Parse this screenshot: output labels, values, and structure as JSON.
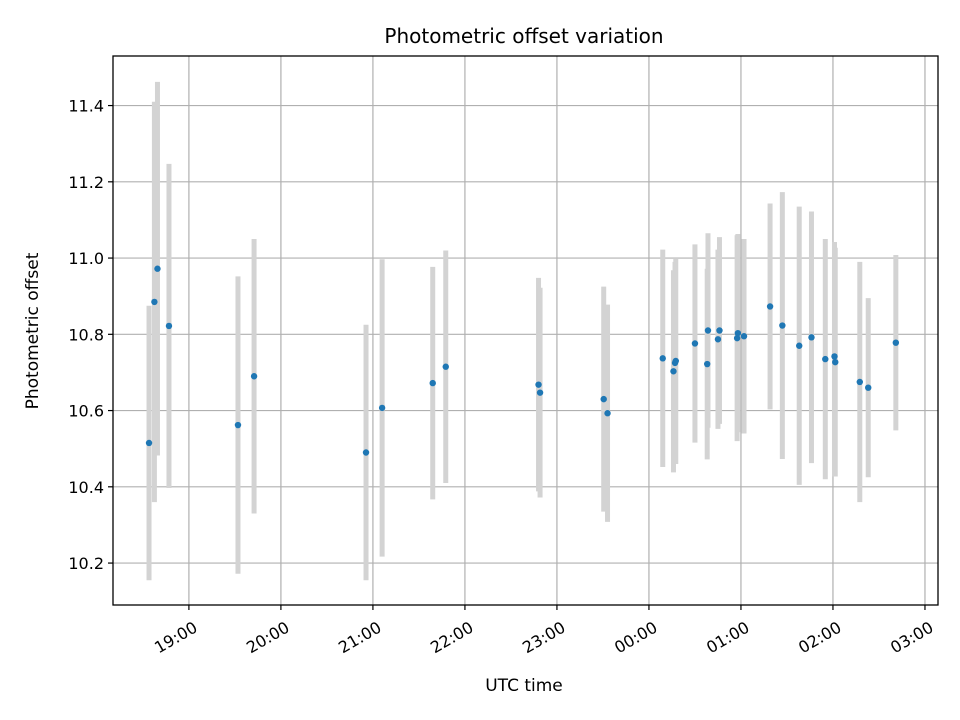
{
  "chart_data": {
    "type": "scatter",
    "title": "Photometric offset variation",
    "xlabel": "UTC time",
    "ylabel": "Photometric offset",
    "x_tick_labels": [
      "19:00",
      "20:00",
      "21:00",
      "22:00",
      "23:00",
      "00:00",
      "01:00",
      "02:00",
      "03:00"
    ],
    "y_tick_labels": [
      "10.2",
      "10.4",
      "10.6",
      "10.8",
      "11.0",
      "11.2",
      "11.4"
    ],
    "x_ticks_minutes_after_1900": [
      0,
      60,
      120,
      180,
      240,
      300,
      360,
      420,
      480
    ],
    "xlim_minutes_after_1900": [
      -49.5,
      488.5
    ],
    "ylim": [
      10.09,
      11.53
    ],
    "grid": true,
    "colors": {
      "points": "#1f77b4",
      "error_bars": "#d3d3d3",
      "grid": "#b0b0b0"
    },
    "points": [
      {
        "t": -26,
        "y": 10.515,
        "err": 0.36
      },
      {
        "t": -22.5,
        "y": 10.885,
        "err": 0.525
      },
      {
        "t": -20.5,
        "y": 10.972,
        "err": 0.49
      },
      {
        "t": -13,
        "y": 10.822,
        "err": 0.425
      },
      {
        "t": 32,
        "y": 10.562,
        "err": 0.39
      },
      {
        "t": 42.5,
        "y": 10.69,
        "err": 0.36
      },
      {
        "t": 115.5,
        "y": 10.49,
        "err": 0.335
      },
      {
        "t": 126,
        "y": 10.607,
        "err": 0.39
      },
      {
        "t": 159,
        "y": 10.672,
        "err": 0.305
      },
      {
        "t": 167.5,
        "y": 10.715,
        "err": 0.305
      },
      {
        "t": 228,
        "y": 10.668,
        "err": 0.28
      },
      {
        "t": 229,
        "y": 10.647,
        "err": 0.275
      },
      {
        "t": 270.5,
        "y": 10.63,
        "err": 0.295
      },
      {
        "t": 273,
        "y": 10.593,
        "err": 0.285
      },
      {
        "t": 309,
        "y": 10.737,
        "err": 0.285
      },
      {
        "t": 316,
        "y": 10.703,
        "err": 0.265
      },
      {
        "t": 317,
        "y": 10.725,
        "err": 0.265
      },
      {
        "t": 317.5,
        "y": 10.73,
        "err": 0.27
      },
      {
        "t": 330,
        "y": 10.776,
        "err": 0.26
      },
      {
        "t": 338,
        "y": 10.722,
        "err": 0.25
      },
      {
        "t": 338.5,
        "y": 10.81,
        "err": 0.255
      },
      {
        "t": 345,
        "y": 10.787,
        "err": 0.235
      },
      {
        "t": 346,
        "y": 10.81,
        "err": 0.245
      },
      {
        "t": 357.5,
        "y": 10.79,
        "err": 0.27
      },
      {
        "t": 358,
        "y": 10.803,
        "err": 0.26
      },
      {
        "t": 362,
        "y": 10.795,
        "err": 0.255
      },
      {
        "t": 379,
        "y": 10.873,
        "err": 0.27
      },
      {
        "t": 387,
        "y": 10.823,
        "err": 0.35
      },
      {
        "t": 398,
        "y": 10.77,
        "err": 0.365
      },
      {
        "t": 406,
        "y": 10.792,
        "err": 0.33
      },
      {
        "t": 415,
        "y": 10.735,
        "err": 0.315
      },
      {
        "t": 421,
        "y": 10.742,
        "err": 0.3
      },
      {
        "t": 421.5,
        "y": 10.727,
        "err": 0.3
      },
      {
        "t": 437.5,
        "y": 10.675,
        "err": 0.315
      },
      {
        "t": 443,
        "y": 10.66,
        "err": 0.235
      },
      {
        "t": 461,
        "y": 10.778,
        "err": 0.23
      }
    ]
  }
}
